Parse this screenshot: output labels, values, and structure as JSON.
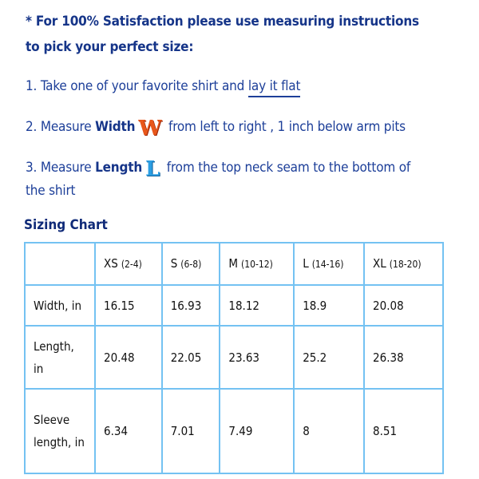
{
  "intro": {
    "line1": "* For 100% Satisfaction please use measuring instructions",
    "line2": "to pick your perfect size:"
  },
  "steps": [
    {
      "prefix": "1. Take one of your favorite shirt and ",
      "link": "lay it flat"
    },
    {
      "prefix": "2. Measure ",
      "bold": "Width",
      "icon": "W",
      "suffix": " from left to right , 1 inch below arm pits"
    },
    {
      "prefix": "3. Measure ",
      "bold": "Length",
      "icon": "L",
      "suffix": " from the top neck seam to the bottom of",
      "cont": "the shirt"
    }
  ],
  "colors": {
    "text": "#1d3f99",
    "width_icon": "#e8571a",
    "length_icon": "#2b9ee3",
    "table_border": "#74c2f2"
  },
  "chart_title": "Sizing Chart",
  "table": {
    "headers": [
      {
        "size": "XS",
        "range": "(2-4)"
      },
      {
        "size": "S",
        "range": "(6-8)"
      },
      {
        "size": "M",
        "range": "(10-12)"
      },
      {
        "size": "L",
        "range": "(14-16)"
      },
      {
        "size": "XL",
        "range": "(18-20)"
      }
    ],
    "rows": [
      {
        "label": "Width, in",
        "values": [
          "16.15",
          "16.93",
          "18.12",
          "18.9",
          "20.08"
        ]
      },
      {
        "label": "Length, in",
        "values": [
          "20.48",
          "22.05",
          "23.63",
          "25.2",
          "26.38"
        ]
      },
      {
        "label": "Sleeve length, in",
        "values": [
          "6.34",
          "7.01",
          "7.49",
          "8",
          "8.51"
        ]
      }
    ]
  }
}
